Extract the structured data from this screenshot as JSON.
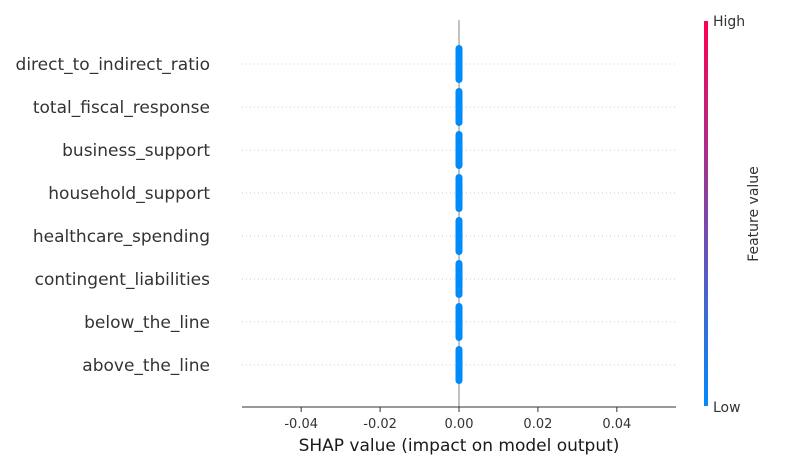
{
  "chart_data": {
    "type": "scatter",
    "subtype": "shap-beeswarm",
    "features": [
      "direct_to_indirect_ratio",
      "total_fiscal_response",
      "business_support",
      "household_support",
      "healthcare_spending",
      "contingent_liabilities",
      "below_the_line",
      "above_the_line"
    ],
    "shap_values": [
      0,
      0,
      0,
      0,
      0,
      0,
      0,
      0
    ],
    "feature_value_level": "low",
    "xlabel": "SHAP value (impact on model output)",
    "xlim": [
      -0.055,
      0.055
    ],
    "xticks": [
      -0.04,
      -0.02,
      0.0,
      0.02,
      0.04
    ],
    "xtick_labels": [
      "-0.04",
      "-0.02",
      "0.00",
      "0.02",
      "0.04"
    ],
    "colorbar": {
      "label": "Feature value",
      "high_label": "High",
      "low_label": "Low",
      "high_color": "#ff0052",
      "low_color": "#008bfb"
    },
    "point_color": "#008bfb"
  }
}
